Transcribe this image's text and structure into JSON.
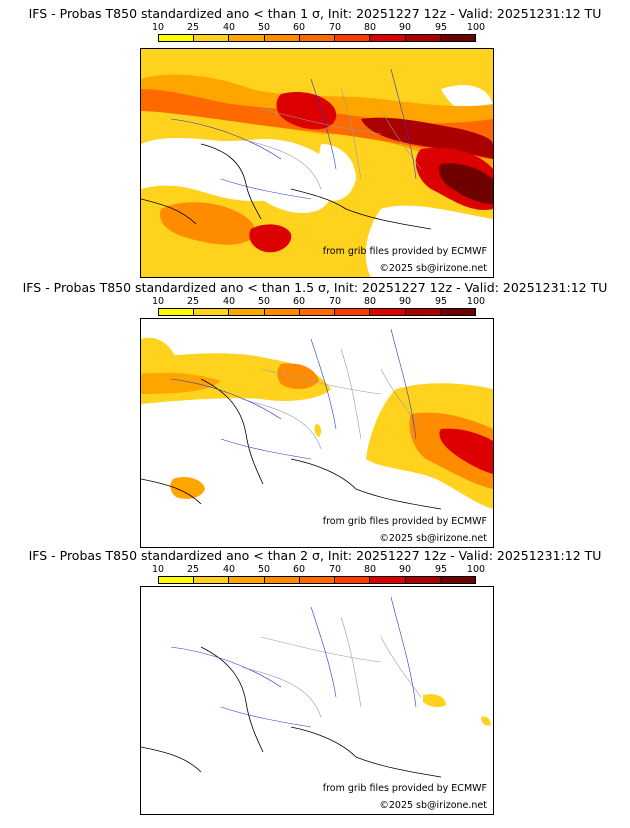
{
  "colorbar": {
    "ticks": [
      "10",
      "25",
      "40",
      "50",
      "60",
      "70",
      "80",
      "90",
      "95",
      "100"
    ],
    "colors": [
      "#ffff00",
      "#ffd21e",
      "#ffa500",
      "#ff8c00",
      "#ff6a00",
      "#ff3c00",
      "#dc0000",
      "#aa0000",
      "#6e0000"
    ]
  },
  "credits": {
    "source": "from grib files provided by ECMWF",
    "copyright": "©2025 sb@irizone.net"
  },
  "panels": [
    {
      "title": "IFS - Probas T850  standardized ano < than 1 σ, Init: 20251227 12z - Valid: 20251231:12 TU"
    },
    {
      "title": "IFS - Probas T850  standardized ano < than 1.5 σ, Init: 20251227 12z - Valid: 20251231:12 TU"
    },
    {
      "title": "IFS - Probas T850  standardized ano < than 2 σ, Init: 20251227 12z - Valid: 20251231:12 TU"
    }
  ]
}
